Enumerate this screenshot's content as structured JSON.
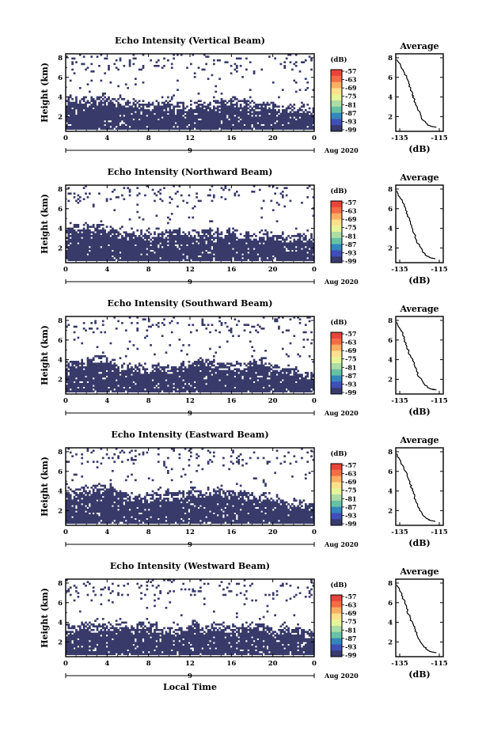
{
  "chart_data": [
    {
      "type": "heatmap",
      "title": "Echo Intensity (Vertical Beam)",
      "ylabel": "Height (km)",
      "yticks": [
        "2",
        "4",
        "6",
        "8"
      ],
      "xticks": [
        "0",
        "4",
        "8",
        "12",
        "16",
        "20",
        "0"
      ],
      "day_label": "9",
      "month_label": "Aug 2020",
      "colorbar": {
        "unit": "(dB)",
        "ticks": [
          "-57",
          "-63",
          "-69",
          "-75",
          "-81",
          "-87",
          "-93",
          "-99"
        ]
      },
      "profile": {
        "type": "line",
        "title": "Average",
        "xticks": [
          "-135",
          "-115"
        ],
        "yticks": [
          "2",
          "4",
          "6",
          "8"
        ],
        "xlabel": "(dB)",
        "xlim": [
          -137,
          -113
        ],
        "ylim": [
          0.5,
          8.4
        ],
        "x": [
          -136.5,
          -134.5,
          -133,
          -131.5,
          -130.5,
          -129.5,
          -128.5,
          -128,
          -127,
          -126,
          -124.5,
          -123,
          -121,
          -119,
          -116.5
        ],
        "y": [
          7.8,
          7.2,
          6.6,
          6.0,
          5.4,
          4.8,
          4.3,
          3.9,
          3.4,
          2.8,
          2.2,
          1.6,
          1.2,
          1.0,
          0.9
        ]
      }
    },
    {
      "type": "heatmap",
      "title": "Echo Intensity (Northward Beam)",
      "ylabel": "Height (km)",
      "yticks": [
        "2",
        "4",
        "6",
        "8"
      ],
      "xticks": [
        "0",
        "4",
        "8",
        "12",
        "16",
        "20",
        "0"
      ],
      "day_label": "9",
      "month_label": "Aug 2020",
      "colorbar": {
        "unit": "(dB)",
        "ticks": [
          "-57",
          "-63",
          "-69",
          "-75",
          "-81",
          "-87",
          "-93",
          "-99"
        ]
      },
      "profile": {
        "type": "line",
        "title": "Average",
        "xticks": [
          "-135",
          "-115"
        ],
        "yticks": [
          "2",
          "4",
          "6",
          "8"
        ],
        "xlabel": "(dB)",
        "xlim": [
          -137,
          -113
        ],
        "ylim": [
          0.5,
          8.4
        ],
        "x": [
          -136.5,
          -135,
          -133.5,
          -132,
          -131,
          -130,
          -129,
          -128.5,
          -127.5,
          -126.5,
          -125,
          -123.5,
          -121.5,
          -119.5,
          -117
        ],
        "y": [
          7.8,
          7.2,
          6.6,
          6.0,
          5.4,
          4.8,
          4.3,
          3.9,
          3.4,
          2.8,
          2.2,
          1.6,
          1.2,
          1.0,
          0.9
        ]
      }
    },
    {
      "type": "heatmap",
      "title": "Echo Intensity (Southward Beam)",
      "ylabel": "Height (km)",
      "yticks": [
        "2",
        "4",
        "6",
        "8"
      ],
      "xticks": [
        "0",
        "4",
        "8",
        "12",
        "16",
        "20",
        "0"
      ],
      "day_label": "9",
      "month_label": "Aug 2020",
      "colorbar": {
        "unit": "(dB)",
        "ticks": [
          "-57",
          "-63",
          "-69",
          "-75",
          "-81",
          "-87",
          "-93",
          "-99"
        ]
      },
      "profile": {
        "type": "line",
        "title": "Average",
        "xticks": [
          "-135",
          "-115"
        ],
        "yticks": [
          "2",
          "4",
          "6",
          "8"
        ],
        "xlabel": "(dB)",
        "xlim": [
          -137,
          -113
        ],
        "ylim": [
          0.5,
          8.4
        ],
        "x": [
          -136.5,
          -135,
          -133.5,
          -132.5,
          -131.5,
          -130.5,
          -129.5,
          -128.5,
          -127.5,
          -126.5,
          -125,
          -123,
          -121,
          -119,
          -116.5
        ],
        "y": [
          7.8,
          7.2,
          6.6,
          6.0,
          5.4,
          4.8,
          4.3,
          3.9,
          3.4,
          2.8,
          2.2,
          1.6,
          1.2,
          1.0,
          0.9
        ]
      }
    },
    {
      "type": "heatmap",
      "title": "Echo Intensity (Eastward Beam)",
      "ylabel": "Height (km)",
      "yticks": [
        "2",
        "4",
        "6",
        "8"
      ],
      "xticks": [
        "0",
        "4",
        "8",
        "12",
        "16",
        "20",
        "0"
      ],
      "day_label": "9",
      "month_label": "Aug 2020",
      "colorbar": {
        "unit": "(dB)",
        "ticks": [
          "-57",
          "-63",
          "-69",
          "-75",
          "-81",
          "-87",
          "-93",
          "-99"
        ]
      },
      "profile": {
        "type": "line",
        "title": "Average",
        "xticks": [
          "-135",
          "-115"
        ],
        "yticks": [
          "2",
          "4",
          "6",
          "8"
        ],
        "xlabel": "(dB)",
        "xlim": [
          -137,
          -113
        ],
        "ylim": [
          0.5,
          8.4
        ],
        "x": [
          -136.5,
          -135,
          -133.5,
          -132,
          -131,
          -130,
          -129,
          -128,
          -127.5,
          -126.5,
          -125,
          -123.5,
          -121.5,
          -119.5,
          -117
        ],
        "y": [
          7.8,
          7.2,
          6.6,
          6.0,
          5.4,
          4.8,
          4.3,
          3.9,
          3.4,
          2.8,
          2.2,
          1.6,
          1.2,
          1.0,
          0.9
        ]
      }
    },
    {
      "type": "heatmap",
      "title": "Echo Intensity (Westward Beam)",
      "ylabel": "Height (km)",
      "yticks": [
        "2",
        "4",
        "6",
        "8"
      ],
      "xticks": [
        "0",
        "4",
        "8",
        "12",
        "16",
        "20",
        "0"
      ],
      "day_label": "9",
      "month_label": "Aug 2020",
      "xlabel": "Local Time",
      "colorbar": {
        "unit": "(dB)",
        "ticks": [
          "-57",
          "-63",
          "-69",
          "-75",
          "-81",
          "-87",
          "-93",
          "-99"
        ]
      },
      "profile": {
        "type": "line",
        "title": "Average",
        "xticks": [
          "-135",
          "-115"
        ],
        "yticks": [
          "2",
          "4",
          "6",
          "8"
        ],
        "xlabel": "(dB)",
        "xlim": [
          -137,
          -113
        ],
        "ylim": [
          0.5,
          8.4
        ],
        "x": [
          -136.5,
          -135,
          -133.5,
          -132.5,
          -131.5,
          -130.5,
          -129.5,
          -128.5,
          -127.5,
          -126.5,
          -125,
          -123,
          -121,
          -119,
          -116.5
        ],
        "y": [
          7.8,
          7.2,
          6.6,
          6.0,
          5.4,
          4.8,
          4.3,
          3.9,
          3.4,
          2.8,
          2.2,
          1.6,
          1.2,
          1.0,
          0.9
        ]
      }
    }
  ],
  "colors": {
    "echo_fill": "#383a6a",
    "background": "#ffffff",
    "colorbar_scale": [
      "#e8443a",
      "#f46d43",
      "#fdae61",
      "#fee08b",
      "#e6f598",
      "#abdda4",
      "#66c2a5",
      "#3288bd",
      "#3f4fb8",
      "#363a6e"
    ]
  }
}
